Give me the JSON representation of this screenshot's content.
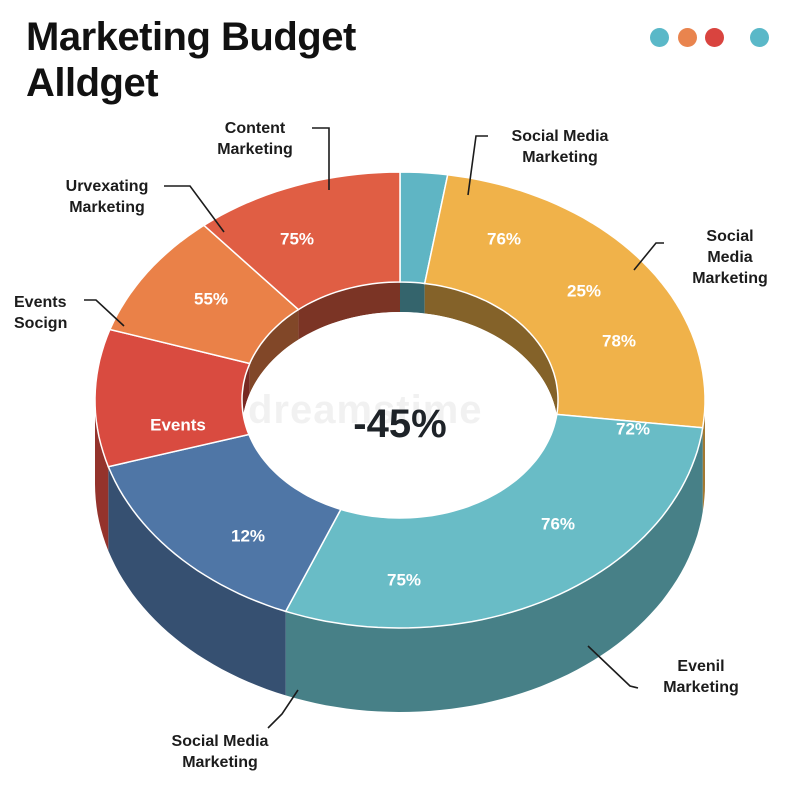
{
  "title": {
    "line1": "Marketing Budget",
    "line2": "Alldget"
  },
  "palette_dots": [
    "#5ab8c8",
    "#e9844e",
    "#d9443f",
    "#5ab8c8"
  ],
  "watermark": "dreamstime",
  "chart_data": {
    "type": "pie",
    "style": "3d-donut",
    "center_label": "-45%",
    "segments": [
      {
        "color": "#5fb5c4",
        "labels": []
      },
      {
        "color": "#f0b24a",
        "labels": [
          "76%",
          "25%",
          "78%"
        ]
      },
      {
        "color": "#69bcc6",
        "labels": [
          "72%",
          "76%"
        ]
      },
      {
        "color": "#4f76a6",
        "labels": [
          "12%",
          "75%"
        ]
      },
      {
        "color": "#d94b40",
        "labels": [
          "Events"
        ]
      },
      {
        "color": "#ea8148",
        "labels": [
          "55%"
        ]
      },
      {
        "color": "#e05e44",
        "labels": [
          "75%"
        ]
      }
    ],
    "callouts": [
      {
        "lines": [
          "Content",
          "Marketing"
        ]
      },
      {
        "lines": [
          "Social Media",
          "Marketing"
        ]
      },
      {
        "lines": [
          "Social",
          "Media",
          "Marketing"
        ]
      },
      {
        "lines": [
          "Urvexating",
          "Marketing"
        ]
      },
      {
        "lines": [
          "Events",
          "Socign"
        ]
      },
      {
        "lines": [
          "Evenil",
          "Marketing"
        ]
      },
      {
        "lines": [
          "Social Media",
          "Marketing"
        ]
      }
    ]
  }
}
